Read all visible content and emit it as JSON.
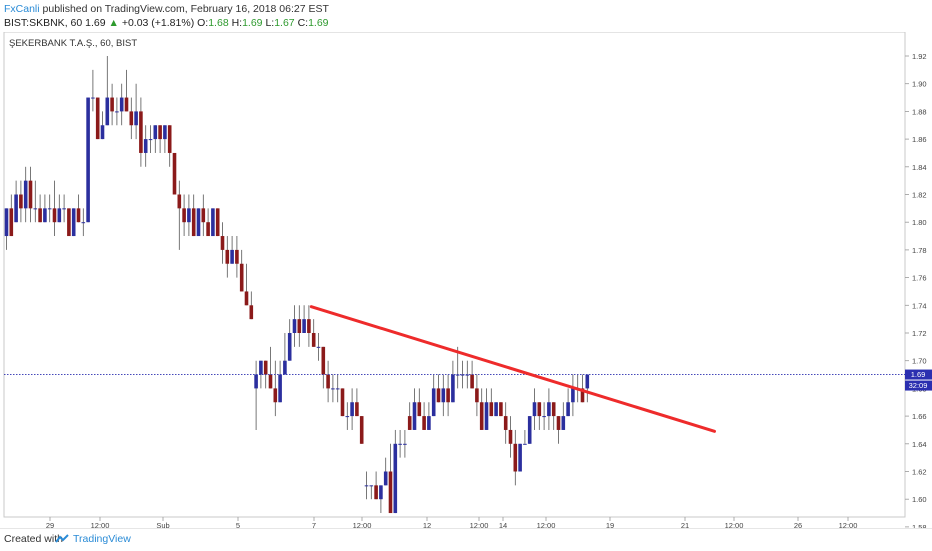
{
  "header": {
    "author": "FxCanli",
    "published_text": " published on TradingView.com, February 16, 2018 06:27 EST",
    "symbol": "BIST:SKBNK, 60",
    "last": "1.69",
    "change_arrow": "▲",
    "change": "+0.03 (+1.81%)",
    "open_label": "O:",
    "open": "1.68",
    "high_label": "H:",
    "high": "1.69",
    "low_label": "L:",
    "low": "1.67",
    "close_label": "C:",
    "close": "1.69"
  },
  "footer": {
    "created_with": "Created with",
    "brand": "TradingView",
    "logo_icon": "tradingview-logo-icon"
  },
  "chart_data": {
    "type": "candlestick",
    "title": "ŞEKERBANK T.A.Ş., 60, BIST",
    "ylim": [
      1.57,
      1.93
    ],
    "yticks": [
      "1.92",
      "1.90",
      "1.88",
      "1.86",
      "1.84",
      "1.82",
      "1.80",
      "1.78",
      "1.76",
      "1.74",
      "1.72",
      "1.70",
      "1.68",
      "1.66",
      "1.64",
      "1.62",
      "1.60",
      "1.58"
    ],
    "x_tick_labels": [
      "29",
      "12:00",
      "Şub",
      "5",
      "7",
      "12:00",
      "12",
      "12:00",
      "14",
      "12:00",
      "19",
      "21",
      "12:00",
      "26",
      "12:00"
    ],
    "last_price_label": "1.69",
    "countdown_label": "32:09",
    "colors": {
      "up": "#2b2f9e",
      "down": "#8b1a1a",
      "trendline": "#ee2b2b",
      "price_line": "#2b2fb0",
      "price_badge": "#2b2fb0"
    },
    "candles": [
      {
        "o": 1.79,
        "h": 1.81,
        "l": 1.78,
        "c": 1.81
      },
      {
        "o": 1.81,
        "h": 1.82,
        "l": 1.79,
        "c": 1.79
      },
      {
        "o": 1.8,
        "h": 1.83,
        "l": 1.8,
        "c": 1.82
      },
      {
        "o": 1.82,
        "h": 1.83,
        "l": 1.8,
        "c": 1.81
      },
      {
        "o": 1.81,
        "h": 1.84,
        "l": 1.8,
        "c": 1.83
      },
      {
        "o": 1.83,
        "h": 1.84,
        "l": 1.8,
        "c": 1.81
      },
      {
        "o": 1.81,
        "h": 1.83,
        "l": 1.8,
        "c": 1.81
      },
      {
        "o": 1.81,
        "h": 1.82,
        "l": 1.8,
        "c": 1.8
      },
      {
        "o": 1.8,
        "h": 1.82,
        "l": 1.8,
        "c": 1.81
      },
      {
        "o": 1.81,
        "h": 1.82,
        "l": 1.8,
        "c": 1.81
      },
      {
        "o": 1.81,
        "h": 1.83,
        "l": 1.79,
        "c": 1.8
      },
      {
        "o": 1.8,
        "h": 1.82,
        "l": 1.8,
        "c": 1.81
      },
      {
        "o": 1.81,
        "h": 1.82,
        "l": 1.8,
        "c": 1.81
      },
      {
        "o": 1.81,
        "h": 1.81,
        "l": 1.79,
        "c": 1.79
      },
      {
        "o": 1.79,
        "h": 1.81,
        "l": 1.79,
        "c": 1.81
      },
      {
        "o": 1.81,
        "h": 1.82,
        "l": 1.8,
        "c": 1.8
      },
      {
        "o": 1.8,
        "h": 1.81,
        "l": 1.79,
        "c": 1.8
      },
      {
        "o": 1.8,
        "h": 1.89,
        "l": 1.8,
        "c": 1.89
      },
      {
        "o": 1.89,
        "h": 1.91,
        "l": 1.88,
        "c": 1.89
      },
      {
        "o": 1.89,
        "h": 1.89,
        "l": 1.86,
        "c": 1.86
      },
      {
        "o": 1.86,
        "h": 1.88,
        "l": 1.86,
        "c": 1.87
      },
      {
        "o": 1.87,
        "h": 1.92,
        "l": 1.87,
        "c": 1.89
      },
      {
        "o": 1.89,
        "h": 1.9,
        "l": 1.87,
        "c": 1.88
      },
      {
        "o": 1.88,
        "h": 1.89,
        "l": 1.87,
        "c": 1.88
      },
      {
        "o": 1.88,
        "h": 1.9,
        "l": 1.87,
        "c": 1.89
      },
      {
        "o": 1.89,
        "h": 1.91,
        "l": 1.88,
        "c": 1.88
      },
      {
        "o": 1.88,
        "h": 1.89,
        "l": 1.86,
        "c": 1.87
      },
      {
        "o": 1.87,
        "h": 1.9,
        "l": 1.86,
        "c": 1.88
      },
      {
        "o": 1.88,
        "h": 1.89,
        "l": 1.84,
        "c": 1.85
      },
      {
        "o": 1.85,
        "h": 1.87,
        "l": 1.84,
        "c": 1.86
      },
      {
        "o": 1.86,
        "h": 1.87,
        "l": 1.85,
        "c": 1.86
      },
      {
        "o": 1.86,
        "h": 1.87,
        "l": 1.85,
        "c": 1.87
      },
      {
        "o": 1.87,
        "h": 1.87,
        "l": 1.85,
        "c": 1.86
      },
      {
        "o": 1.86,
        "h": 1.87,
        "l": 1.85,
        "c": 1.87
      },
      {
        "o": 1.87,
        "h": 1.87,
        "l": 1.84,
        "c": 1.85
      },
      {
        "o": 1.85,
        "h": 1.85,
        "l": 1.82,
        "c": 1.82
      },
      {
        "o": 1.82,
        "h": 1.83,
        "l": 1.78,
        "c": 1.81
      },
      {
        "o": 1.81,
        "h": 1.82,
        "l": 1.79,
        "c": 1.8
      },
      {
        "o": 1.8,
        "h": 1.82,
        "l": 1.79,
        "c": 1.81
      },
      {
        "o": 1.81,
        "h": 1.82,
        "l": 1.79,
        "c": 1.79
      },
      {
        "o": 1.79,
        "h": 1.81,
        "l": 1.79,
        "c": 1.81
      },
      {
        "o": 1.81,
        "h": 1.82,
        "l": 1.79,
        "c": 1.8
      },
      {
        "o": 1.8,
        "h": 1.81,
        "l": 1.79,
        "c": 1.79
      },
      {
        "o": 1.79,
        "h": 1.81,
        "l": 1.79,
        "c": 1.81
      },
      {
        "o": 1.81,
        "h": 1.81,
        "l": 1.79,
        "c": 1.79
      },
      {
        "o": 1.79,
        "h": 1.8,
        "l": 1.77,
        "c": 1.78
      },
      {
        "o": 1.78,
        "h": 1.79,
        "l": 1.76,
        "c": 1.77
      },
      {
        "o": 1.77,
        "h": 1.79,
        "l": 1.77,
        "c": 1.78
      },
      {
        "o": 1.78,
        "h": 1.79,
        "l": 1.76,
        "c": 1.77
      },
      {
        "o": 1.77,
        "h": 1.78,
        "l": 1.75,
        "c": 1.75
      },
      {
        "o": 1.75,
        "h": 1.77,
        "l": 1.74,
        "c": 1.74
      },
      {
        "o": 1.74,
        "h": 1.75,
        "l": 1.73,
        "c": 1.73
      },
      {
        "o": 1.68,
        "h": 1.7,
        "l": 1.65,
        "c": 1.69
      },
      {
        "o": 1.69,
        "h": 1.7,
        "l": 1.68,
        "c": 1.7
      },
      {
        "o": 1.7,
        "h": 1.7,
        "l": 1.68,
        "c": 1.69
      },
      {
        "o": 1.69,
        "h": 1.71,
        "l": 1.68,
        "c": 1.68
      },
      {
        "o": 1.68,
        "h": 1.7,
        "l": 1.66,
        "c": 1.67
      },
      {
        "o": 1.67,
        "h": 1.7,
        "l": 1.67,
        "c": 1.69
      },
      {
        "o": 1.69,
        "h": 1.72,
        "l": 1.69,
        "c": 1.7
      },
      {
        "o": 1.7,
        "h": 1.73,
        "l": 1.7,
        "c": 1.72
      },
      {
        "o": 1.72,
        "h": 1.74,
        "l": 1.71,
        "c": 1.73
      },
      {
        "o": 1.73,
        "h": 1.74,
        "l": 1.71,
        "c": 1.72
      },
      {
        "o": 1.72,
        "h": 1.74,
        "l": 1.72,
        "c": 1.73
      },
      {
        "o": 1.73,
        "h": 1.74,
        "l": 1.71,
        "c": 1.72
      },
      {
        "o": 1.72,
        "h": 1.73,
        "l": 1.71,
        "c": 1.71
      },
      {
        "o": 1.71,
        "h": 1.72,
        "l": 1.7,
        "c": 1.71
      },
      {
        "o": 1.71,
        "h": 1.71,
        "l": 1.68,
        "c": 1.69
      },
      {
        "o": 1.69,
        "h": 1.7,
        "l": 1.67,
        "c": 1.68
      },
      {
        "o": 1.68,
        "h": 1.69,
        "l": 1.67,
        "c": 1.68
      },
      {
        "o": 1.68,
        "h": 1.69,
        "l": 1.67,
        "c": 1.68
      },
      {
        "o": 1.68,
        "h": 1.68,
        "l": 1.66,
        "c": 1.66
      },
      {
        "o": 1.66,
        "h": 1.67,
        "l": 1.65,
        "c": 1.66
      },
      {
        "o": 1.66,
        "h": 1.68,
        "l": 1.65,
        "c": 1.67
      },
      {
        "o": 1.67,
        "h": 1.68,
        "l": 1.66,
        "c": 1.66
      },
      {
        "o": 1.66,
        "h": 1.66,
        "l": 1.64,
        "c": 1.64
      },
      {
        "o": 1.61,
        "h": 1.62,
        "l": 1.6,
        "c": 1.61
      },
      {
        "o": 1.61,
        "h": 1.61,
        "l": 1.6,
        "c": 1.61
      },
      {
        "o": 1.61,
        "h": 1.62,
        "l": 1.6,
        "c": 1.6
      },
      {
        "o": 1.6,
        "h": 1.61,
        "l": 1.59,
        "c": 1.61
      },
      {
        "o": 1.61,
        "h": 1.63,
        "l": 1.61,
        "c": 1.62
      },
      {
        "o": 1.62,
        "h": 1.64,
        "l": 1.59,
        "c": 1.59
      },
      {
        "o": 1.59,
        "h": 1.65,
        "l": 1.59,
        "c": 1.64
      },
      {
        "o": 1.64,
        "h": 1.65,
        "l": 1.63,
        "c": 1.64
      },
      {
        "o": 1.64,
        "h": 1.65,
        "l": 1.63,
        "c": 1.64
      },
      {
        "o": 1.66,
        "h": 1.67,
        "l": 1.65,
        "c": 1.65
      },
      {
        "o": 1.65,
        "h": 1.68,
        "l": 1.65,
        "c": 1.67
      },
      {
        "o": 1.67,
        "h": 1.68,
        "l": 1.66,
        "c": 1.66
      },
      {
        "o": 1.66,
        "h": 1.67,
        "l": 1.65,
        "c": 1.65
      },
      {
        "o": 1.65,
        "h": 1.67,
        "l": 1.65,
        "c": 1.66
      },
      {
        "o": 1.66,
        "h": 1.69,
        "l": 1.66,
        "c": 1.68
      },
      {
        "o": 1.68,
        "h": 1.69,
        "l": 1.67,
        "c": 1.67
      },
      {
        "o": 1.67,
        "h": 1.69,
        "l": 1.66,
        "c": 1.68
      },
      {
        "o": 1.68,
        "h": 1.69,
        "l": 1.66,
        "c": 1.67
      },
      {
        "o": 1.67,
        "h": 1.7,
        "l": 1.67,
        "c": 1.69
      },
      {
        "o": 1.69,
        "h": 1.71,
        "l": 1.68,
        "c": 1.69
      },
      {
        "o": 1.69,
        "h": 1.7,
        "l": 1.68,
        "c": 1.69
      },
      {
        "o": 1.69,
        "h": 1.7,
        "l": 1.68,
        "c": 1.69
      },
      {
        "o": 1.69,
        "h": 1.7,
        "l": 1.68,
        "c": 1.68
      },
      {
        "o": 1.68,
        "h": 1.69,
        "l": 1.66,
        "c": 1.67
      },
      {
        "o": 1.67,
        "h": 1.68,
        "l": 1.65,
        "c": 1.65
      },
      {
        "o": 1.65,
        "h": 1.68,
        "l": 1.65,
        "c": 1.67
      },
      {
        "o": 1.67,
        "h": 1.68,
        "l": 1.66,
        "c": 1.66
      },
      {
        "o": 1.66,
        "h": 1.67,
        "l": 1.66,
        "c": 1.67
      },
      {
        "o": 1.67,
        "h": 1.67,
        "l": 1.66,
        "c": 1.66
      },
      {
        "o": 1.66,
        "h": 1.67,
        "l": 1.64,
        "c": 1.65
      },
      {
        "o": 1.65,
        "h": 1.66,
        "l": 1.63,
        "c": 1.64
      },
      {
        "o": 1.64,
        "h": 1.65,
        "l": 1.61,
        "c": 1.62
      },
      {
        "o": 1.62,
        "h": 1.64,
        "l": 1.62,
        "c": 1.64
      },
      {
        "o": 1.64,
        "h": 1.65,
        "l": 1.64,
        "c": 1.64
      },
      {
        "o": 1.64,
        "h": 1.66,
        "l": 1.64,
        "c": 1.66
      },
      {
        "o": 1.66,
        "h": 1.68,
        "l": 1.65,
        "c": 1.67
      },
      {
        "o": 1.67,
        "h": 1.67,
        "l": 1.65,
        "c": 1.66
      },
      {
        "o": 1.66,
        "h": 1.67,
        "l": 1.65,
        "c": 1.66
      },
      {
        "o": 1.66,
        "h": 1.68,
        "l": 1.65,
        "c": 1.67
      },
      {
        "o": 1.67,
        "h": 1.67,
        "l": 1.65,
        "c": 1.66
      },
      {
        "o": 1.66,
        "h": 1.66,
        "l": 1.64,
        "c": 1.65
      },
      {
        "o": 1.65,
        "h": 1.67,
        "l": 1.65,
        "c": 1.66
      },
      {
        "o": 1.66,
        "h": 1.68,
        "l": 1.66,
        "c": 1.67
      },
      {
        "o": 1.67,
        "h": 1.69,
        "l": 1.66,
        "c": 1.68
      },
      {
        "o": 1.68,
        "h": 1.69,
        "l": 1.67,
        "c": 1.68
      },
      {
        "o": 1.68,
        "h": 1.69,
        "l": 1.67,
        "c": 1.67
      },
      {
        "o": 1.68,
        "h": 1.69,
        "l": 1.67,
        "c": 1.69
      }
    ],
    "trendline": {
      "x1": 63.5,
      "y1": 1.739,
      "x2": 147.5,
      "y2": 1.649
    }
  }
}
